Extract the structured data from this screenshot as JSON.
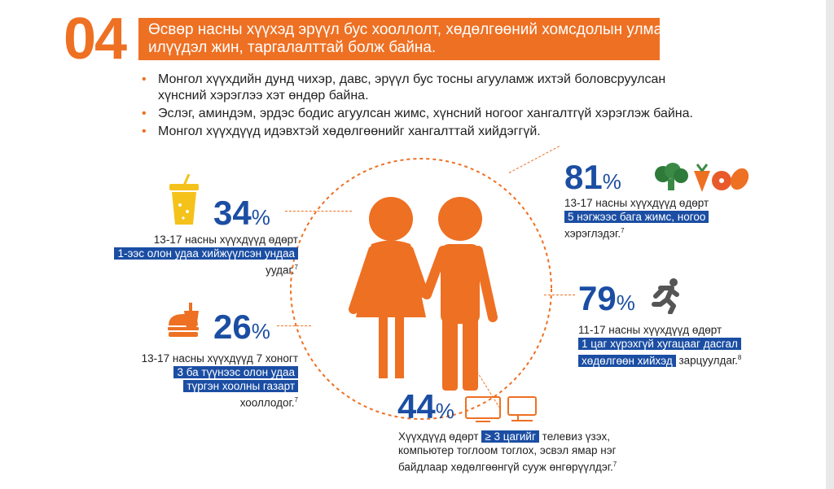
{
  "section_number": "04",
  "banner": {
    "line1": "Өсвөр насны хүүхэд эрүүл бус хооллолт, хөдөлгөөний хомсдолын улмаас",
    "line2": "илүүдэл жин, таргалалттай болж байна."
  },
  "bullets": [
    {
      "lines": [
        "Монгол хүүхдийн дунд чихэр, давс, эрүүл бус тосны агууламж ихтэй боловсруулсан",
        "хүнсний хэрэглээ хэт өндөр байна."
      ]
    },
    {
      "lines": [
        "Эслэг, аминдэм, эрдэс бодис агуулсан жимс, хүнсний ногоог хангалтгүй хэрэглэж байна."
      ]
    },
    {
      "lines": [
        "Монгол хүүхдүүд идэвхтэй хөдөлгөөнийг хангалттай хийдэггүй."
      ]
    }
  ],
  "stats": {
    "drinks": {
      "number": "34",
      "sign": "%",
      "line1": "13-17 насны хүүхдүүд өдөрт",
      "highlight": "1-ээс олон удаа хийжүүлсэн ундаа",
      "line3": "уудаг.",
      "ref": "7",
      "icon": "soda-cup-icon"
    },
    "fastfood": {
      "number": "26",
      "sign": "%",
      "line1": "13-17 насны хүүхдүүд 7 хоногт",
      "highlight1": "3 ба түүнээс олон удаа",
      "highlight2": "түргэн хоолны газарт",
      "line4": "хооллодог.",
      "ref": "7",
      "icon": "fast-food-icon"
    },
    "fruit": {
      "number": "81",
      "sign": "%",
      "line1": "13-17 насны хүүхдүүд өдөрт",
      "highlight": "5 нэгжээс бага жимс, ногоо",
      "line3": "хэрэглэдэг.",
      "ref": "7",
      "icon": "vegetables-icon"
    },
    "exercise": {
      "number": "79",
      "sign": "%",
      "line1": "11-17 насны хүүхдүүд өдөрт",
      "highlight1": "1 цаг хүрэхгүй хугацааг дасгал",
      "highlight2": "хөдөлгөөн хийхэд",
      "tail": " зарцуулдаг.",
      "ref": "8",
      "icon": "running-person-icon"
    },
    "screen": {
      "number": "44",
      "sign": "%",
      "pre": "Хүүхдүүд өдөрт ",
      "highlight": "≥ 3 цагийг",
      "post": " телевиз үзэх,",
      "line2": "компьютер тоглоом тоглох, эсвэл ямар нэг",
      "line3": "байдлаар хөдөлгөөнгүй сууж өнгөрүүлдэг.",
      "ref": "7",
      "icon": "tv-computer-icon"
    }
  },
  "colors": {
    "accent": "#ee7023",
    "blue": "#1b4ea3"
  }
}
